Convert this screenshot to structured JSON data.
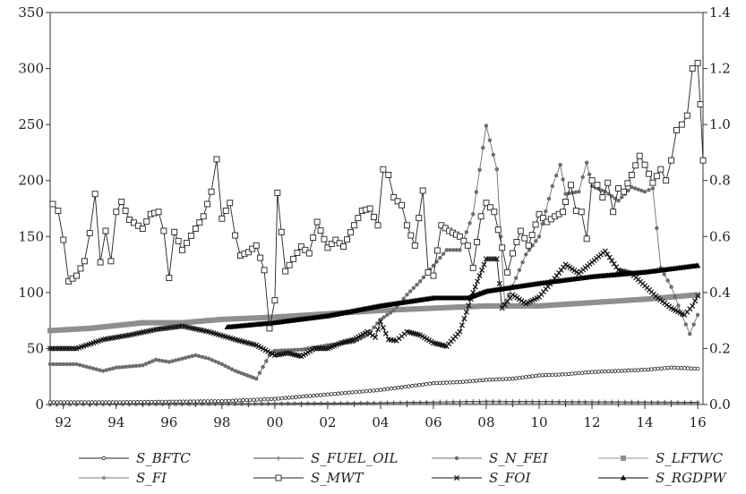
{
  "chart_data": {
    "type": "line",
    "left_axis": {
      "ylim": [
        0,
        350
      ],
      "ticks": [
        "0",
        "50",
        "100",
        "150",
        "200",
        "250",
        "300",
        "350"
      ]
    },
    "right_axis": {
      "ylim": [
        0,
        1.4
      ],
      "ticks": [
        "0.0",
        "0.2",
        "0.4",
        "0.6",
        "0.8",
        "1.0",
        "1.2",
        "1.4"
      ]
    },
    "x_axis": {
      "xlim": [
        1991.5,
        2016.2
      ],
      "ticks": [
        "92",
        "94",
        "96",
        "98",
        "00",
        "02",
        "04",
        "06",
        "08",
        "10",
        "12",
        "14",
        "16"
      ]
    },
    "legend": {
      "placement": "bottom",
      "entries": [
        "S_BFTC",
        "S_FUEL_OIL",
        "S_N_FEI",
        "S_LFTWC",
        "S_FI",
        "S_MWT",
        "S_FOI",
        "S_RGDPW"
      ]
    },
    "series": [
      {
        "name": "S_BFTC",
        "axis": "left",
        "marker": "circle-open",
        "color": "#222222",
        "points": [
          [
            1991.5,
            2
          ],
          [
            1994,
            2
          ],
          [
            1996,
            2.5
          ],
          [
            1998,
            3
          ],
          [
            2000,
            5
          ],
          [
            2002,
            9
          ],
          [
            2004,
            13
          ],
          [
            2006,
            19
          ],
          [
            2007,
            20
          ],
          [
            2008,
            22
          ],
          [
            2009,
            23
          ],
          [
            2010,
            26
          ],
          [
            2011,
            27
          ],
          [
            2012,
            29
          ],
          [
            2013,
            30
          ],
          [
            2014,
            31
          ],
          [
            2015,
            33
          ],
          [
            2016,
            32
          ]
        ]
      },
      {
        "name": "S_FUEL_OIL",
        "axis": "right",
        "marker": "plus",
        "color": "#444444",
        "points": [
          [
            1991.5,
            0
          ],
          [
            1996,
            0.002
          ],
          [
            2000,
            0.004
          ],
          [
            2004,
            0.006
          ],
          [
            2008,
            0.012
          ],
          [
            2012,
            0.01
          ],
          [
            2016,
            0.008
          ]
        ]
      },
      {
        "name": "S_N_FEI",
        "axis": "left",
        "marker": "circle-filled",
        "color": "#6d6d6d",
        "points": [
          [
            1991.5,
            36
          ],
          [
            1992.5,
            36
          ],
          [
            1993,
            33
          ],
          [
            1993.5,
            30
          ],
          [
            1994,
            33
          ],
          [
            1995,
            35
          ],
          [
            1995.5,
            40
          ],
          [
            1996,
            38
          ],
          [
            1997,
            44
          ],
          [
            1997.5,
            41
          ],
          [
            1998,
            36
          ],
          [
            1998.5,
            30
          ],
          [
            1999.3,
            23
          ],
          [
            1999.8,
            44
          ],
          [
            2000,
            48
          ],
          [
            2001,
            49
          ],
          [
            2002,
            53
          ],
          [
            2003,
            56
          ],
          [
            2003.5,
            62
          ],
          [
            2004,
            76
          ],
          [
            2004.5,
            84
          ],
          [
            2005,
            98
          ],
          [
            2005.5,
            110
          ],
          [
            2006,
            124
          ],
          [
            2006.5,
            138
          ],
          [
            2007,
            138
          ],
          [
            2007.5,
            170
          ],
          [
            2008,
            249
          ],
          [
            2008.4,
            210
          ],
          [
            2008.7,
            90
          ],
          [
            2009,
            106
          ],
          [
            2009.5,
            134
          ],
          [
            2010,
            150
          ],
          [
            2010.5,
            195
          ],
          [
            2010.8,
            214
          ],
          [
            2011,
            188
          ],
          [
            2011.5,
            190
          ],
          [
            2011.8,
            216
          ],
          [
            2012,
            195
          ],
          [
            2012.5,
            190
          ],
          [
            2013,
            182
          ],
          [
            2013.5,
            194
          ],
          [
            2014,
            190
          ],
          [
            2014.3,
            193
          ],
          [
            2014.6,
            122
          ],
          [
            2015,
            105
          ],
          [
            2015.4,
            80
          ],
          [
            2015.7,
            63
          ],
          [
            2016,
            80
          ]
        ]
      },
      {
        "name": "S_LFTWC",
        "axis": "left",
        "marker": "square-filled",
        "color": "#8f8f8f",
        "points": [
          [
            1991.5,
            66
          ],
          [
            1993,
            68
          ],
          [
            1995,
            73
          ],
          [
            1996.5,
            73
          ],
          [
            1998,
            76
          ],
          [
            2000,
            78
          ],
          [
            2002,
            81
          ],
          [
            2004,
            84
          ],
          [
            2006,
            86
          ],
          [
            2008,
            88
          ],
          [
            2010,
            88
          ],
          [
            2012,
            91
          ],
          [
            2014,
            94
          ],
          [
            2016,
            98
          ]
        ]
      },
      {
        "name": "S_FI",
        "axis": "right",
        "marker": "star",
        "color": "#777777",
        "points": [
          [
            1991.5,
            0
          ],
          [
            1996,
            0.001
          ],
          [
            2000,
            0.002
          ],
          [
            2004,
            0.004
          ],
          [
            2008,
            0.006
          ],
          [
            2012,
            0.006
          ],
          [
            2016,
            0.005
          ]
        ]
      },
      {
        "name": "S_MWT",
        "axis": "left",
        "marker": "square-open",
        "color": "#222222",
        "points": [
          [
            1991.6,
            179
          ],
          [
            1991.8,
            173
          ],
          [
            1992,
            147
          ],
          [
            1992.2,
            110
          ],
          [
            1992.5,
            115
          ],
          [
            1992.8,
            128
          ],
          [
            1993,
            153
          ],
          [
            1993.2,
            188
          ],
          [
            1993.4,
            127
          ],
          [
            1993.6,
            155
          ],
          [
            1993.8,
            128
          ],
          [
            1994,
            172
          ],
          [
            1994.2,
            181
          ],
          [
            1994.5,
            165
          ],
          [
            1995,
            157
          ],
          [
            1995.3,
            170
          ],
          [
            1995.6,
            172
          ],
          [
            1995.8,
            155
          ],
          [
            1996,
            113
          ],
          [
            1996.2,
            154
          ],
          [
            1996.5,
            138
          ],
          [
            1997,
            157
          ],
          [
            1997.3,
            168
          ],
          [
            1997.6,
            190
          ],
          [
            1997.8,
            219
          ],
          [
            1998,
            166
          ],
          [
            1998.3,
            180
          ],
          [
            1998.5,
            151
          ],
          [
            1998.7,
            133
          ],
          [
            1999,
            136
          ],
          [
            1999.3,
            142
          ],
          [
            1999.6,
            120
          ],
          [
            1999.8,
            68
          ],
          [
            2000,
            93
          ],
          [
            2000.1,
            189
          ],
          [
            2000.4,
            119
          ],
          [
            2000.7,
            130
          ],
          [
            2001,
            141
          ],
          [
            2001.3,
            135
          ],
          [
            2001.6,
            163
          ],
          [
            2002,
            140
          ],
          [
            2002.3,
            147
          ],
          [
            2002.6,
            141
          ],
          [
            2003,
            160
          ],
          [
            2003.3,
            173
          ],
          [
            2003.6,
            175
          ],
          [
            2003.9,
            160
          ],
          [
            2004.1,
            210
          ],
          [
            2004.3,
            205
          ],
          [
            2004.5,
            185
          ],
          [
            2004.8,
            178
          ],
          [
            2005,
            160
          ],
          [
            2005.3,
            142
          ],
          [
            2005.6,
            191
          ],
          [
            2005.8,
            118
          ],
          [
            2006,
            115
          ],
          [
            2006.3,
            160
          ],
          [
            2006.6,
            155
          ],
          [
            2007,
            150
          ],
          [
            2007.3,
            142
          ],
          [
            2007.5,
            122
          ],
          [
            2007.8,
            168
          ],
          [
            2008,
            180
          ],
          [
            2008.3,
            172
          ],
          [
            2008.6,
            140
          ],
          [
            2008.8,
            118
          ],
          [
            2009,
            135
          ],
          [
            2009.3,
            155
          ],
          [
            2009.6,
            142
          ],
          [
            2010,
            170
          ],
          [
            2010.3,
            163
          ],
          [
            2010.6,
            168
          ],
          [
            2010.9,
            172
          ],
          [
            2011,
            181
          ],
          [
            2011.2,
            196
          ],
          [
            2011.4,
            173
          ],
          [
            2011.6,
            172
          ],
          [
            2011.8,
            148
          ],
          [
            2012,
            200
          ],
          [
            2012.2,
            196
          ],
          [
            2012.4,
            185
          ],
          [
            2012.6,
            198
          ],
          [
            2012.8,
            172
          ],
          [
            2013,
            193
          ],
          [
            2013.2,
            190
          ],
          [
            2013.5,
            205
          ],
          [
            2013.8,
            222
          ],
          [
            2014,
            214
          ],
          [
            2014.3,
            198
          ],
          [
            2014.6,
            210
          ],
          [
            2014.8,
            200
          ],
          [
            2015,
            218
          ],
          [
            2015.2,
            245
          ],
          [
            2015.4,
            250
          ],
          [
            2015.6,
            258
          ],
          [
            2015.8,
            300
          ],
          [
            2016,
            305
          ],
          [
            2016.1,
            268
          ],
          [
            2016.2,
            218
          ]
        ]
      },
      {
        "name": "S_FOI",
        "axis": "left",
        "marker": "x",
        "color": "#111111",
        "points": [
          [
            1991.5,
            50
          ],
          [
            1992.5,
            50
          ],
          [
            1993.5,
            58
          ],
          [
            1994.5,
            62
          ],
          [
            1995.5,
            67
          ],
          [
            1996.5,
            70
          ],
          [
            1997.5,
            65
          ],
          [
            1998.5,
            58
          ],
          [
            1999.3,
            53
          ],
          [
            2000,
            44
          ],
          [
            2000.5,
            46
          ],
          [
            2001,
            43
          ],
          [
            2001.5,
            50
          ],
          [
            2002,
            50
          ],
          [
            2002.5,
            55
          ],
          [
            2003,
            58
          ],
          [
            2003.5,
            65
          ],
          [
            2003.8,
            60
          ],
          [
            2004,
            74
          ],
          [
            2004.3,
            58
          ],
          [
            2004.6,
            57
          ],
          [
            2005,
            65
          ],
          [
            2005.5,
            62
          ],
          [
            2006,
            55
          ],
          [
            2006.5,
            52
          ],
          [
            2007,
            65
          ],
          [
            2007.5,
            100
          ],
          [
            2008,
            130
          ],
          [
            2008.4,
            130
          ],
          [
            2008.6,
            86
          ],
          [
            2009,
            98
          ],
          [
            2009.5,
            90
          ],
          [
            2010,
            96
          ],
          [
            2010.5,
            110
          ],
          [
            2011,
            125
          ],
          [
            2011.5,
            117
          ],
          [
            2012,
            127
          ],
          [
            2012.5,
            137
          ],
          [
            2013,
            120
          ],
          [
            2013.5,
            117
          ],
          [
            2014,
            106
          ],
          [
            2014.5,
            95
          ],
          [
            2015,
            86
          ],
          [
            2015.5,
            80
          ],
          [
            2015.8,
            88
          ],
          [
            2016,
            97
          ]
        ]
      },
      {
        "name": "S_RGDPW",
        "axis": "left",
        "marker": "triangle-filled",
        "color": "#000000",
        "points": [
          [
            1998.2,
            69
          ],
          [
            2000,
            73
          ],
          [
            2002,
            79
          ],
          [
            2004,
            88
          ],
          [
            2006,
            95
          ],
          [
            2007.3,
            95
          ],
          [
            2008,
            101
          ],
          [
            2010,
            108
          ],
          [
            2012,
            114
          ],
          [
            2014,
            118
          ],
          [
            2016,
            124
          ]
        ]
      }
    ]
  }
}
